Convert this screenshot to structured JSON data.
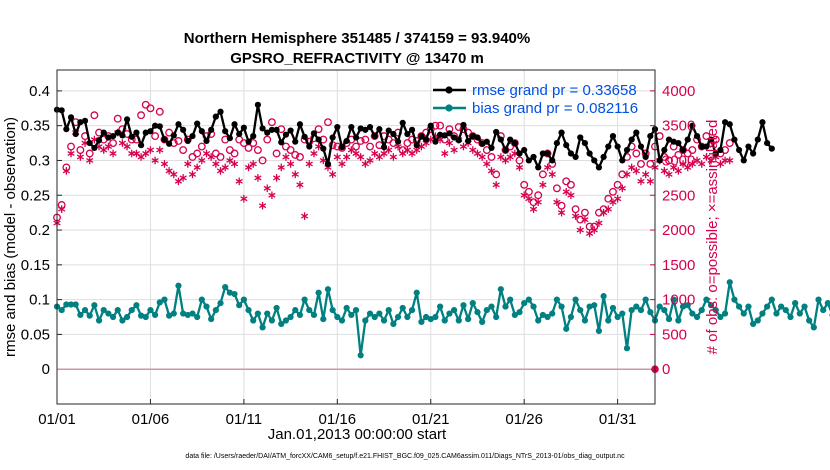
{
  "chart_data": {
    "type": "line",
    "title": "Northern Hemisphere 351485 / 374159 = 93.940%",
    "subtitle": "GPSRO_REFRACTIVITY @ 13470 m",
    "xlabel": "Jan.01,2013 00:00:00 start",
    "ylabel": "rmse and bias (model - observation)",
    "ylabel_right": "# of obs: o=possible; ×=assimilated",
    "footer": "data file: /Users/raeder/DAI/ATM_forcXX/CAM6_setup/f.e21.FHIST_BGC.f09_025.CAM6assim.011/Diags_NTrS_2013-01/obs_diag_output.nc",
    "xlim": [
      0,
      32
    ],
    "ylim": [
      -0.05,
      0.43
    ],
    "ylim_right": [
      -500,
      4300
    ],
    "grid": true,
    "legend_position": "top-right",
    "x_ticks": [
      {
        "value": 0,
        "label": "01/01"
      },
      {
        "value": 5,
        "label": "01/06"
      },
      {
        "value": 10,
        "label": "01/11"
      },
      {
        "value": 15,
        "label": "01/16"
      },
      {
        "value": 20,
        "label": "01/21"
      },
      {
        "value": 25,
        "label": "01/26"
      },
      {
        "value": 30,
        "label": "01/31"
      }
    ],
    "y_ticks": [
      {
        "value": 0,
        "label": "0"
      },
      {
        "value": 0.05,
        "label": "0.05"
      },
      {
        "value": 0.1,
        "label": "0.1"
      },
      {
        "value": 0.15,
        "label": "0.15"
      },
      {
        "value": 0.2,
        "label": "0.2"
      },
      {
        "value": 0.25,
        "label": "0.25"
      },
      {
        "value": 0.3,
        "label": "0.3"
      },
      {
        "value": 0.35,
        "label": "0.35"
      },
      {
        "value": 0.4,
        "label": "0.4"
      }
    ],
    "y_ticks_right": [
      {
        "value": 0,
        "label": "0"
      },
      {
        "value": 500,
        "label": "500"
      },
      {
        "value": 1000,
        "label": "1000"
      },
      {
        "value": 1500,
        "label": "1500"
      },
      {
        "value": 2000,
        "label": "2000"
      },
      {
        "value": 2500,
        "label": "2500"
      },
      {
        "value": 3000,
        "label": "3000"
      },
      {
        "value": 3500,
        "label": "3500"
      },
      {
        "value": 4000,
        "label": "4000"
      }
    ],
    "series": [
      {
        "name": "rmse grand pr = 0.33658",
        "color": "#000000",
        "axis": "left",
        "marker": "filled-circle",
        "x_step": 0.25,
        "values": [
          0.373,
          0.372,
          0.345,
          0.362,
          0.338,
          0.355,
          0.357,
          0.325,
          0.318,
          0.329,
          0.34,
          0.333,
          0.335,
          0.34,
          0.336,
          0.359,
          0.334,
          0.34,
          0.322,
          0.34,
          0.342,
          0.35,
          0.349,
          0.33,
          0.324,
          0.336,
          0.352,
          0.344,
          0.328,
          0.335,
          0.353,
          0.342,
          0.328,
          0.344,
          0.363,
          0.37,
          0.342,
          0.332,
          0.352,
          0.338,
          0.347,
          0.327,
          0.335,
          0.38,
          0.346,
          0.34,
          0.344,
          0.344,
          0.326,
          0.337,
          0.343,
          0.327,
          0.352,
          0.334,
          0.32,
          0.339,
          0.33,
          0.317,
          0.295,
          0.333,
          0.348,
          0.319,
          0.328,
          0.348,
          0.333,
          0.346,
          0.344,
          0.348,
          0.335,
          0.345,
          0.319,
          0.343,
          0.338,
          0.327,
          0.354,
          0.338,
          0.344,
          0.322,
          0.335,
          0.33,
          0.35,
          0.327,
          0.337,
          0.336,
          0.339,
          0.333,
          0.329,
          0.351,
          0.328,
          0.335,
          0.333,
          0.324,
          0.327,
          0.318,
          0.341,
          0.33,
          0.315,
          0.33,
          0.325,
          0.31,
          0.315,
          0.3,
          0.305,
          0.29,
          0.31,
          0.31,
          0.3,
          0.325,
          0.34,
          0.322,
          0.31,
          0.305,
          0.333,
          0.325,
          0.31,
          0.3,
          0.29,
          0.305,
          0.32,
          0.335,
          0.32,
          0.3,
          0.315,
          0.33,
          0.34,
          0.32,
          0.305,
          0.335,
          0.345,
          0.3,
          0.315,
          0.33,
          0.327,
          0.325,
          0.315,
          0.33,
          0.35,
          0.335,
          0.32,
          0.32,
          0.33,
          0.31,
          0.315,
          0.355,
          0.352,
          0.33,
          0.315,
          0.3,
          0.32,
          0.31,
          0.33,
          0.355,
          0.325,
          0.317
        ]
      },
      {
        "name": "bias grand pr = 0.082116",
        "color": "#008080",
        "axis": "left",
        "marker": "filled-circle",
        "x_step": 0.25,
        "values": [
          0.09,
          0.085,
          0.093,
          0.093,
          0.093,
          0.078,
          0.085,
          0.077,
          0.092,
          0.07,
          0.085,
          0.08,
          0.075,
          0.085,
          0.07,
          0.075,
          0.085,
          0.092,
          0.077,
          0.075,
          0.085,
          0.078,
          0.096,
          0.1,
          0.077,
          0.08,
          0.12,
          0.08,
          0.078,
          0.08,
          0.075,
          0.1,
          0.09,
          0.072,
          0.085,
          0.095,
          0.118,
          0.11,
          0.108,
          0.092,
          0.1,
          0.085,
          0.07,
          0.08,
          0.06,
          0.08,
          0.07,
          0.088,
          0.065,
          0.07,
          0.075,
          0.085,
          0.078,
          0.1,
          0.085,
          0.078,
          0.11,
          0.072,
          0.115,
          0.085,
          0.075,
          0.07,
          0.088,
          0.078,
          0.085,
          0.02,
          0.07,
          0.08,
          0.075,
          0.08,
          0.07,
          0.085,
          0.065,
          0.075,
          0.088,
          0.075,
          0.085,
          0.11,
          0.068,
          0.075,
          0.072,
          0.075,
          0.09,
          0.07,
          0.08,
          0.085,
          0.07,
          0.092,
          0.072,
          0.095,
          0.082,
          0.068,
          0.085,
          0.09,
          0.075,
          0.115,
          0.09,
          0.1,
          0.078,
          0.082,
          0.095,
          0.1,
          0.09,
          0.07,
          0.078,
          0.075,
          0.08,
          0.1,
          0.09,
          0.058,
          0.075,
          0.1,
          0.085,
          0.07,
          0.09,
          0.092,
          0.055,
          0.105,
          0.07,
          0.088,
          0.075,
          0.08,
          0.03,
          0.085,
          0.09,
          0.085,
          0.1,
          0.082,
          0.07,
          0.09,
          0.085,
          0.072,
          0.1,
          0.07,
          0.09,
          0.092,
          0.08,
          0.075,
          0.085,
          0.1,
          0.092,
          0.085,
          0.075,
          0.08,
          0.125,
          0.1,
          0.09,
          0.08,
          0.09,
          0.065,
          0.07,
          0.08,
          0.09,
          0.1,
          0.08,
          0.09,
          0.085,
          0.075,
          0.095,
          0.08,
          0.09,
          0.07,
          0.06,
          0.1,
          0.085,
          0.095,
          0.078,
          0.07,
          0.1,
          0.075
        ]
      }
    ],
    "obs_series": [
      {
        "name": "possible",
        "color": "#d6004f",
        "axis": "right",
        "marker": "open-circle",
        "x_step": 0.25,
        "values": [
          2180,
          2360,
          2900,
          3200,
          3550,
          3150,
          3350,
          3100,
          3650,
          3400,
          3300,
          3350,
          3250,
          3600,
          3450,
          3380,
          3300,
          3300,
          3650,
          3800,
          3750,
          3350,
          3700,
          3300,
          3400,
          3250,
          3280,
          3150,
          3300,
          3050,
          3100,
          3200,
          3350,
          3380,
          3100,
          3050,
          3300,
          3150,
          3100,
          3300,
          3250,
          3180,
          3250,
          3150,
          3000,
          3300,
          3550,
          3100,
          3450,
          3200,
          3150,
          3080,
          3050,
          3300,
          3270,
          3320,
          3450,
          3300,
          3550,
          3220,
          3200,
          3180,
          3250,
          3300,
          3200,
          3280,
          3300,
          3200,
          3350,
          3220,
          3350,
          3300,
          3250,
          3400,
          3150,
          3250,
          3300,
          3280,
          3350,
          3400,
          3450,
          3500,
          3500,
          3300,
          3450,
          3350,
          3480,
          3450,
          3400,
          3350,
          3300,
          3250,
          3150,
          3050,
          2800,
          3350,
          3150,
          3200,
          3250,
          3000,
          2650,
          2550,
          2400,
          2500,
          2800,
          3100,
          2950,
          2600,
          2350,
          2700,
          2650,
          2300,
          2150,
          2250,
          2050,
          2050,
          2250,
          2300,
          2450,
          2550,
          2650,
          2800,
          3050,
          3200,
          3100,
          2950,
          3100,
          2950,
          3200,
          3350,
          3050,
          3000,
          3200,
          3080,
          3150,
          3100,
          3150,
          3300,
          3200,
          3350,
          3250,
          3300,
          3100,
          3150,
          3250
        ]
      },
      {
        "name": "assimilated",
        "color": "#d6004f",
        "axis": "right",
        "marker": "asterisk",
        "x_step": 0.25,
        "values": [
          2100,
          2300,
          2850,
          3100,
          3400,
          3050,
          3250,
          3000,
          3300,
          3200,
          3150,
          3200,
          3100,
          3400,
          3250,
          3200,
          3100,
          3100,
          3050,
          3100,
          3150,
          3000,
          3150,
          2950,
          2850,
          2800,
          2700,
          2750,
          2950,
          2800,
          2900,
          3000,
          3100,
          3050,
          2950,
          2850,
          2900,
          3000,
          2950,
          2700,
          2450,
          2900,
          2950,
          2750,
          2350,
          2600,
          2500,
          2750,
          2900,
          3050,
          2950,
          2800,
          2650,
          2200,
          2950,
          3100,
          3200,
          3000,
          2900,
          2800,
          3050,
          2950,
          3050,
          3150,
          3100,
          3050,
          2950,
          3000,
          3100,
          3050,
          3100,
          3150,
          3050,
          3200,
          3100,
          3150,
          3100,
          3150,
          3200,
          3250,
          3300,
          3350,
          3300,
          3100,
          3250,
          3150,
          3300,
          3200,
          3250,
          3150,
          3100,
          3050,
          2950,
          2850,
          2650,
          3050,
          3000,
          3050,
          3100,
          2900,
          2500,
          2450,
          2300,
          2400,
          2650,
          2900,
          2800,
          2400,
          2250,
          2550,
          2500,
          2200,
          2000,
          2150,
          1950,
          2000,
          2100,
          2250,
          2300,
          2400,
          2450,
          2600,
          2800,
          2900,
          2850,
          2700,
          2800,
          2700,
          2900,
          3000,
          2850,
          2800,
          2900,
          2850,
          2950,
          2900,
          2950,
          3000,
          2950,
          3050,
          3000,
          3050,
          2950,
          3000,
          3000
        ]
      }
    ],
    "zero_marker": {
      "x": 32,
      "value": 0,
      "axis": "right",
      "color": "#d6004f"
    }
  }
}
